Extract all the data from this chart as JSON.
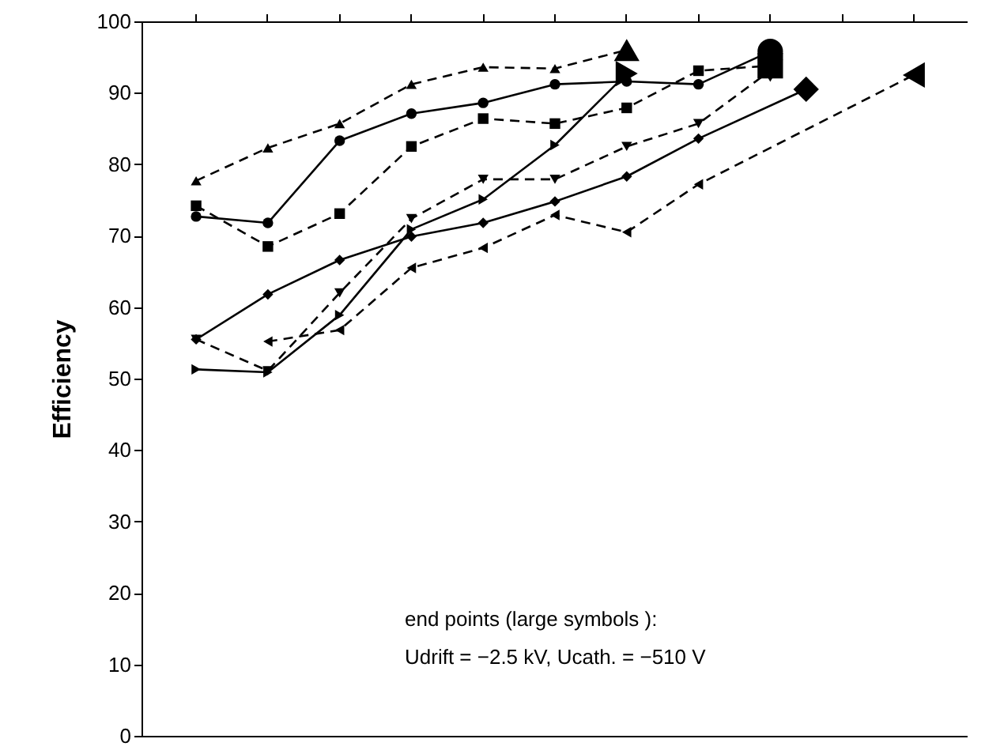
{
  "chart_data": {
    "type": "line",
    "ylabel": "Efficiency",
    "categories": [
      null,
      null,
      null,
      null,
      null,
      null,
      null,
      null,
      null,
      null,
      null,
      null,
      null,
      null,
      null,
      null,
      null,
      null,
      null,
      null,
      null,
      null,
      null
    ],
    "ylim": [
      0,
      100
    ],
    "yticks": [
      0,
      10,
      20,
      30,
      40,
      50,
      60,
      70,
      80,
      90,
      100
    ],
    "grid": false,
    "series": [
      {
        "color": "#000000",
        "marker": "triangle",
        "line_style": "dashed",
        "values": [
          null,
          77.8,
          null,
          82.4,
          null,
          85.8,
          null,
          91.3,
          null,
          93.7,
          null,
          93.5,
          null,
          96.1,
          null,
          null,
          null,
          null,
          null,
          null,
          null,
          null,
          null
        ]
      },
      {
        "color": "#000000",
        "marker": "circle",
        "line_style": "solid",
        "values": [
          null,
          72.8,
          null,
          71.9,
          null,
          83.4,
          null,
          87.2,
          null,
          88.7,
          null,
          91.3,
          null,
          91.7,
          null,
          91.3,
          null,
          95.9,
          null,
          null,
          null,
          null,
          null
        ]
      },
      {
        "color": "#000000",
        "marker": "square",
        "line_style": "dashed",
        "values": [
          null,
          74.3,
          null,
          68.6,
          null,
          73.2,
          null,
          82.6,
          null,
          86.5,
          null,
          85.8,
          null,
          88.0,
          null,
          93.2,
          null,
          93.9,
          null,
          null,
          null,
          null,
          null
        ]
      },
      {
        "color": "#000000",
        "marker": "triangle-down",
        "line_style": "dashed",
        "values": [
          null,
          55.6,
          null,
          51.2,
          null,
          62.1,
          null,
          72.5,
          null,
          78.0,
          null,
          78.0,
          null,
          82.6,
          null,
          85.8,
          null,
          93.2,
          null,
          null,
          null,
          null,
          null
        ]
      },
      {
        "color": "#000000",
        "marker": "diamond",
        "line_style": "solid",
        "values": [
          null,
          55.6,
          null,
          61.9,
          null,
          66.7,
          null,
          70.0,
          null,
          71.9,
          null,
          74.9,
          null,
          78.4,
          null,
          83.7,
          null,
          null,
          90.6,
          null,
          null,
          null,
          null
        ]
      },
      {
        "color": "#000000",
        "marker": "triangle-right",
        "line_style": "solid",
        "values": [
          null,
          51.4,
          null,
          51.0,
          null,
          59.0,
          null,
          71.0,
          null,
          75.2,
          null,
          82.8,
          null,
          92.8,
          null,
          null,
          null,
          null,
          null,
          null,
          null,
          null,
          null
        ]
      },
      {
        "color": "#000000",
        "marker": "triangle-left",
        "line_style": "dashed",
        "values": [
          null,
          null,
          null,
          55.3,
          null,
          56.9,
          null,
          65.6,
          null,
          68.4,
          null,
          73.0,
          null,
          70.6,
          null,
          77.3,
          null,
          null,
          null,
          null,
          null,
          92.6,
          null
        ]
      }
    ],
    "annotations": [
      "end points (large symbols ):",
      "Udrift = −2.5 kV, Ucath. = −510 V"
    ]
  }
}
